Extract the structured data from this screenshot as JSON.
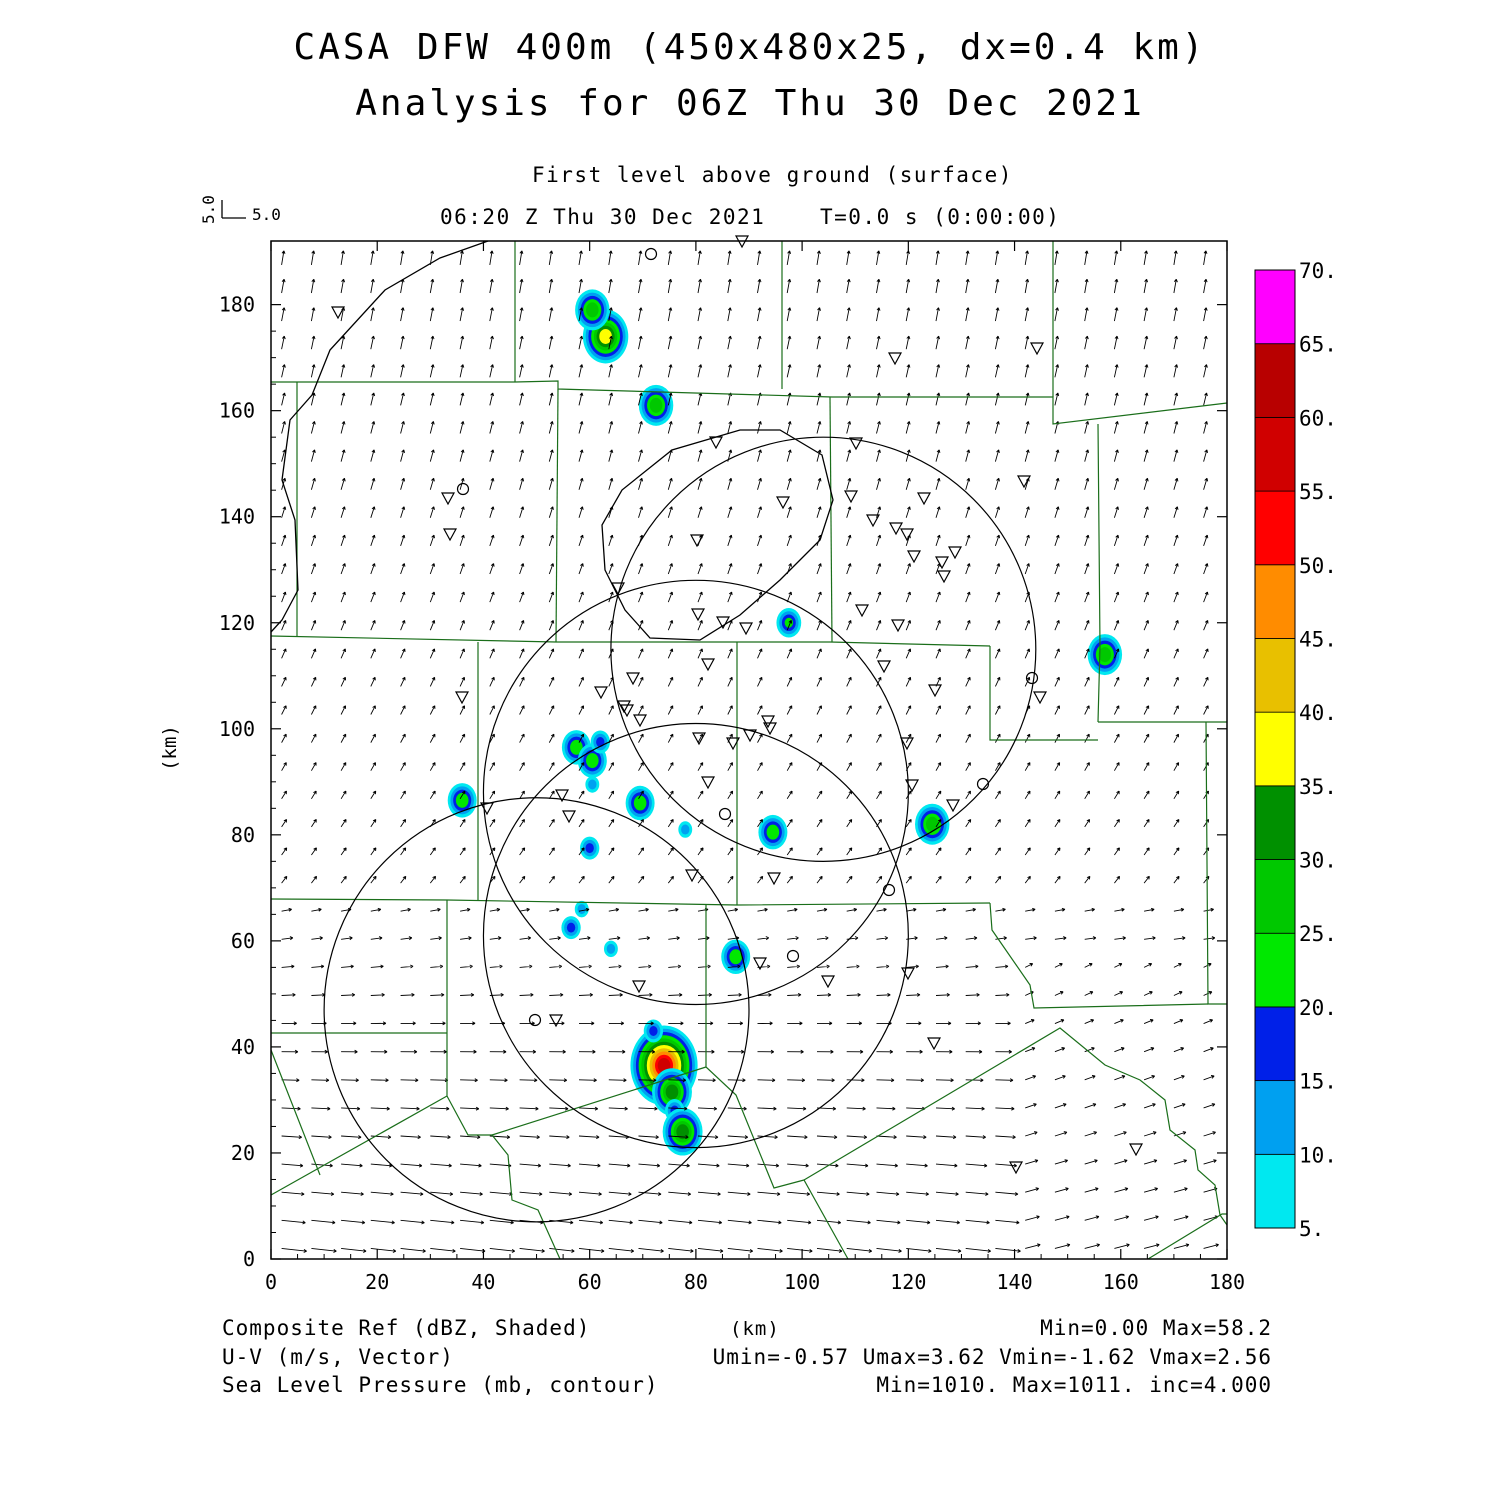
{
  "header": {
    "title_line1": "CASA DFW 400m (450x480x25, dx=0.4 km)",
    "title_line2": "Analysis for 06Z Thu 30 Dec 2021",
    "level": "First level above ground (surface)",
    "valid_time": "06:20 Z Thu 30 Dec 2021",
    "time_offset": "T=0.0 s (0:00:00)",
    "ref_vector_u": "5.0",
    "ref_vector_v": "5.0"
  },
  "footer": {
    "field1": "Composite Ref (dBZ, Shaded)",
    "field1_stats": "Min=0.00 Max=58.2",
    "field2": "U-V (m/s, Vector)",
    "field2_stats": "Umin=-0.57 Umax=3.62 Vmin=-1.62 Vmax=2.56",
    "field3": "Sea Level Pressure (mb, contour)",
    "field3_stats": "Min=1010. Max=1011. inc=4.000",
    "xunit": "(km)"
  },
  "chart_data": {
    "type": "heatmap",
    "xlabel": "(km)",
    "ylabel": "(km)",
    "xlim": [
      0,
      180
    ],
    "ylim": [
      0,
      192
    ],
    "xticks": [
      "0",
      "20",
      "40",
      "60",
      "80",
      "100",
      "120",
      "140",
      "160",
      "180"
    ],
    "yticks": [
      "0",
      "20",
      "40",
      "60",
      "80",
      "100",
      "120",
      "140",
      "160",
      "180"
    ],
    "colorbar": {
      "labels": [
        "5.",
        "10.",
        "15.",
        "20.",
        "25.",
        "30.",
        "35.",
        "40.",
        "45.",
        "50.",
        "55.",
        "60.",
        "65.",
        "70."
      ],
      "colors": [
        "#00e8f0",
        "#00a0f0",
        "#0020e8",
        "#00e800",
        "#00c800",
        "#009000",
        "#ffff00",
        "#e8c000",
        "#ff8c00",
        "#ff0000",
        "#d00000",
        "#b80000",
        "#ff00ff"
      ]
    },
    "radar_rings": [
      {
        "cx": 50,
        "cy": 47,
        "r": 40
      },
      {
        "cx": 80,
        "cy": 61,
        "r": 40
      },
      {
        "cx": 80,
        "cy": 88,
        "r": 40
      },
      {
        "cx": 104,
        "cy": 115,
        "r": 40
      }
    ],
    "echoes": [
      {
        "x": 74,
        "y": 36.5,
        "dbz": 58
      },
      {
        "x": 75.5,
        "y": 31.5,
        "dbz": 30
      },
      {
        "x": 76,
        "y": 28,
        "dbz": 15
      },
      {
        "x": 77.5,
        "y": 24,
        "dbz": 30
      },
      {
        "x": 72,
        "y": 43,
        "dbz": 15
      },
      {
        "x": 63,
        "y": 174,
        "dbz": 38
      },
      {
        "x": 60.5,
        "y": 179,
        "dbz": 25
      },
      {
        "x": 72.5,
        "y": 161,
        "dbz": 28
      },
      {
        "x": 97.5,
        "y": 120,
        "dbz": 20
      },
      {
        "x": 157,
        "y": 114,
        "dbz": 28
      },
      {
        "x": 124.5,
        "y": 82,
        "dbz": 28
      },
      {
        "x": 57.5,
        "y": 96.5,
        "dbz": 22
      },
      {
        "x": 60.5,
        "y": 94,
        "dbz": 22
      },
      {
        "x": 62,
        "y": 97.5,
        "dbz": 15
      },
      {
        "x": 36,
        "y": 86.5,
        "dbz": 22
      },
      {
        "x": 69.5,
        "y": 86,
        "dbz": 22
      },
      {
        "x": 94.5,
        "y": 80.5,
        "dbz": 22
      },
      {
        "x": 60,
        "y": 77.5,
        "dbz": 15
      },
      {
        "x": 87.5,
        "y": 57,
        "dbz": 22
      },
      {
        "x": 56.5,
        "y": 62.5,
        "dbz": 15
      },
      {
        "x": 58.5,
        "y": 66,
        "dbz": 10
      },
      {
        "x": 64,
        "y": 58.5,
        "dbz": 10
      },
      {
        "x": 78,
        "y": 81,
        "dbz": 10
      },
      {
        "x": 60.5,
        "y": 89.5,
        "dbz": 10
      }
    ],
    "pressure_contour_level": "1010"
  }
}
